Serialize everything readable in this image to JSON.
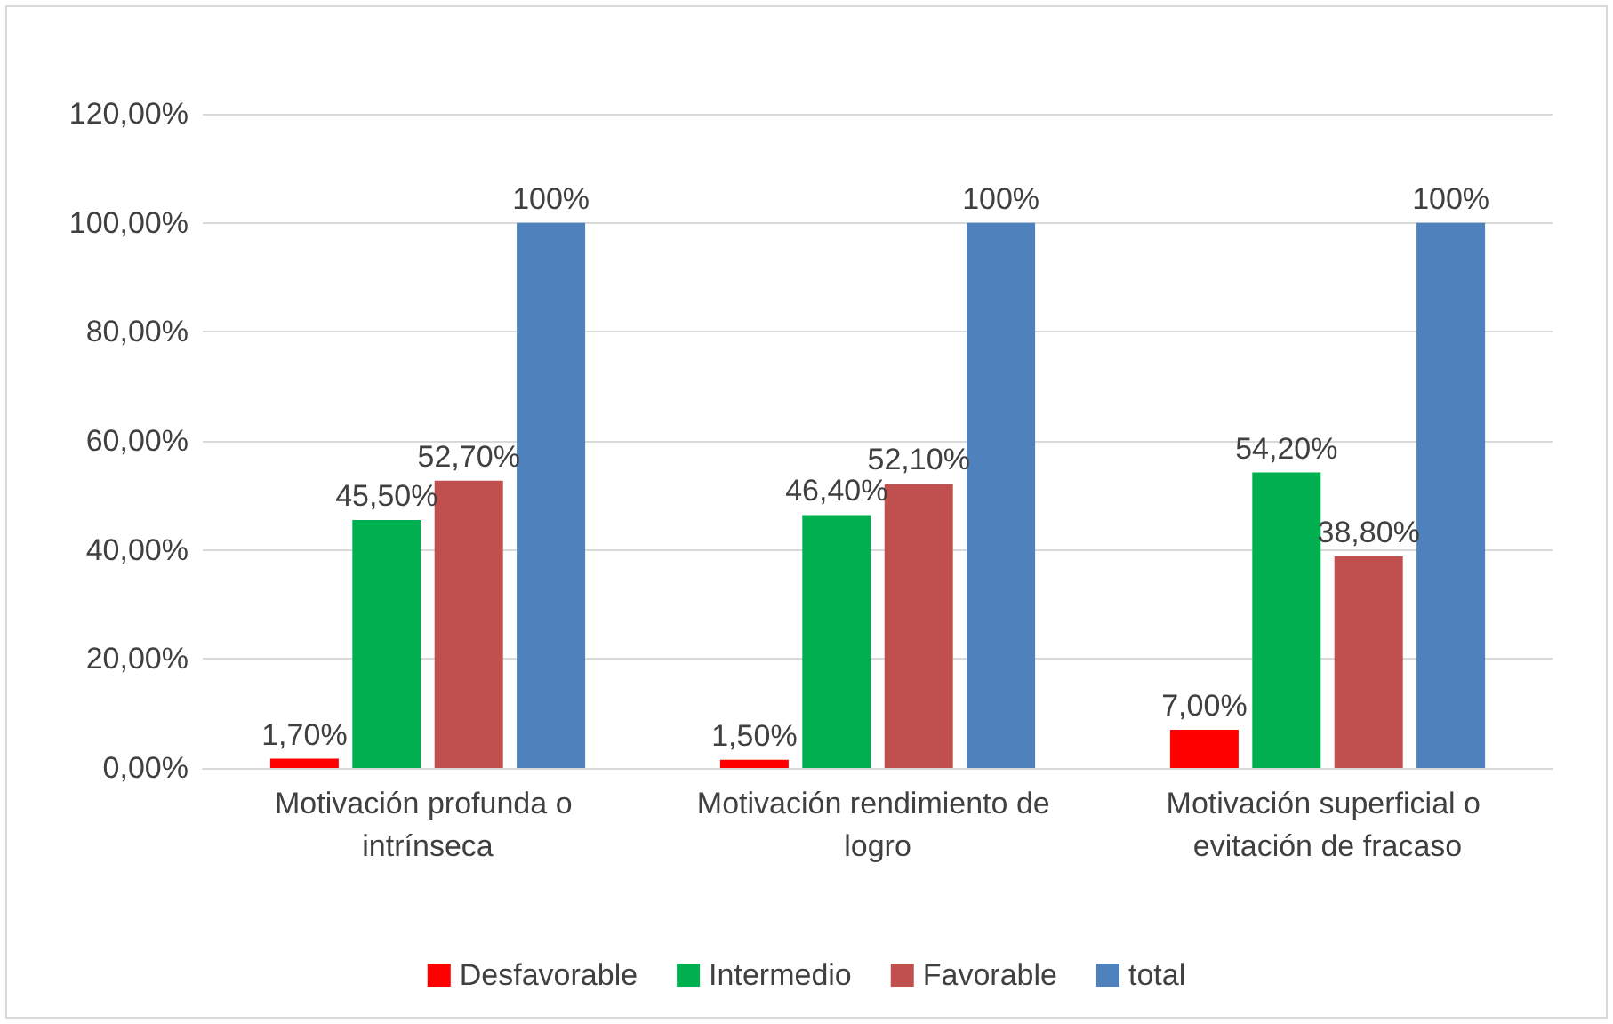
{
  "chart_data": {
    "type": "bar",
    "categories": [
      "Motivación profunda o intrínseca",
      "Motivación rendimiento de logro",
      "Motivación superficial o evitación de fracaso"
    ],
    "series": [
      {
        "name": "Desfavorable",
        "color": "#ff0000",
        "values": [
          1.7,
          1.5,
          7.0
        ],
        "value_labels": [
          "1,70%",
          "1,50%",
          "7,00%"
        ]
      },
      {
        "name": "Intermedio",
        "color": "#00b050",
        "values": [
          45.5,
          46.4,
          54.2
        ],
        "value_labels": [
          "45,50%",
          "46,40%",
          "54,20%"
        ]
      },
      {
        "name": "Favorable",
        "color": "#c0504d",
        "values": [
          52.7,
          52.1,
          38.8
        ],
        "value_labels": [
          "52,70%",
          "52,10%",
          "38,80%"
        ]
      },
      {
        "name": "total",
        "color": "#4f81bd",
        "values": [
          100,
          100,
          100
        ],
        "value_labels": [
          "100%",
          "100%",
          "100%"
        ]
      }
    ],
    "ylim": [
      0,
      120
    ],
    "yticks": [
      {
        "value": 0,
        "label": "0,00%"
      },
      {
        "value": 20,
        "label": "20,00%"
      },
      {
        "value": 40,
        "label": "40,00%"
      },
      {
        "value": 60,
        "label": "60,00%"
      },
      {
        "value": 80,
        "label": "80,00%"
      },
      {
        "value": 100,
        "label": "100,00%"
      },
      {
        "value": 120,
        "label": "120,00%"
      }
    ],
    "grid": "y",
    "legend": "bottom"
  }
}
